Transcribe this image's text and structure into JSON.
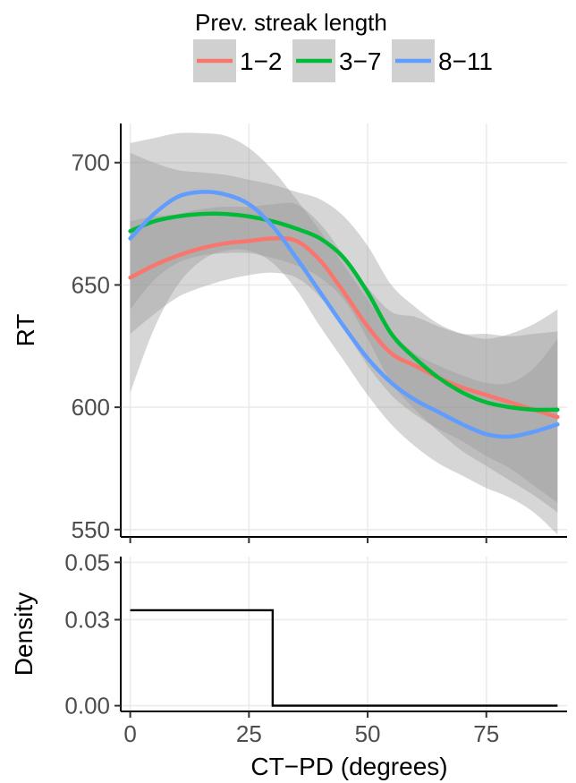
{
  "legend": {
    "title": "Prev. streak length",
    "entries": [
      {
        "label": "1−2",
        "color": "#F8766D"
      },
      {
        "label": "3−7",
        "color": "#00BA38"
      },
      {
        "label": "8−11",
        "color": "#619CFF"
      }
    ]
  },
  "chart_data": [
    {
      "type": "line",
      "panel": "top",
      "xlabel": "",
      "ylabel": "RT",
      "xlim": [
        -2,
        92
      ],
      "ylim": [
        547,
        716
      ],
      "xticks": [
        0,
        25,
        50,
        75
      ],
      "yticks": [
        550,
        600,
        650,
        700
      ],
      "grid": true,
      "legend_position": "top",
      "band_color": "#999999",
      "series": [
        {
          "name": "1−2",
          "color": "#F8766D",
          "x": [
            0,
            5,
            10,
            15,
            20,
            25,
            30,
            35,
            40,
            45,
            50,
            55,
            60,
            65,
            70,
            75,
            80,
            85,
            90
          ],
          "y": [
            653,
            658,
            662,
            665,
            667,
            668,
            669,
            668,
            660,
            647,
            633,
            622,
            617,
            612,
            608,
            605,
            602,
            599,
            596
          ],
          "lower": [
            630,
            638,
            645,
            649,
            652,
            654,
            655,
            653,
            645,
            632,
            617,
            605,
            597,
            591,
            586,
            580,
            575,
            568,
            561
          ],
          "upper": [
            676,
            678,
            679,
            681,
            682,
            682,
            683,
            683,
            675,
            662,
            649,
            639,
            637,
            633,
            630,
            630,
            629,
            630,
            631
          ]
        },
        {
          "name": "3−7",
          "color": "#00BA38",
          "x": [
            0,
            5,
            10,
            15,
            20,
            25,
            30,
            35,
            40,
            45,
            50,
            55,
            60,
            65,
            70,
            75,
            80,
            85,
            90
          ],
          "y": [
            672,
            676,
            678,
            679,
            679,
            678,
            676,
            673,
            669,
            661,
            647,
            630,
            620,
            612,
            606,
            602,
            600,
            599,
            599
          ],
          "lower": [
            640,
            652,
            659,
            662,
            663,
            663,
            661,
            658,
            653,
            644,
            628,
            610,
            599,
            590,
            582,
            576,
            570,
            564,
            557
          ],
          "upper": [
            704,
            700,
            697,
            696,
            695,
            693,
            691,
            688,
            685,
            678,
            666,
            650,
            641,
            634,
            630,
            628,
            630,
            634,
            640
          ]
        },
        {
          "name": "8−11",
          "color": "#619CFF",
          "x": [
            0,
            5,
            10,
            15,
            20,
            25,
            30,
            35,
            40,
            45,
            50,
            55,
            60,
            65,
            70,
            75,
            80,
            85,
            90
          ],
          "y": [
            669,
            679,
            686,
            688,
            687,
            683,
            674,
            661,
            647,
            633,
            620,
            610,
            603,
            598,
            593,
            589,
            588,
            590,
            593
          ],
          "lower": [
            606,
            632,
            650,
            660,
            664,
            664,
            659,
            648,
            633,
            619,
            605,
            593,
            584,
            577,
            572,
            567,
            563,
            557,
            548
          ],
          "upper": [
            708,
            710,
            712,
            712,
            711,
            706,
            697,
            685,
            672,
            658,
            644,
            631,
            622,
            617,
            613,
            610,
            610,
            616,
            628
          ]
        }
      ]
    },
    {
      "type": "line",
      "panel": "bottom",
      "xlabel": "CT−PD (degrees)",
      "ylabel": "Density",
      "xlim": [
        -2,
        92
      ],
      "ylim": [
        -0.002,
        0.052
      ],
      "xticks": [
        0,
        25,
        50,
        75
      ],
      "yticks": [
        0.0,
        0.03,
        0.05
      ],
      "ytick_labels": [
        "0.00",
        "0.03",
        "0.05"
      ],
      "grid": true,
      "step": true,
      "series": [
        {
          "color": "#000000",
          "x": [
            0,
            30,
            30,
            90
          ],
          "y": [
            0.0333,
            0.0333,
            0,
            0
          ]
        }
      ]
    }
  ]
}
